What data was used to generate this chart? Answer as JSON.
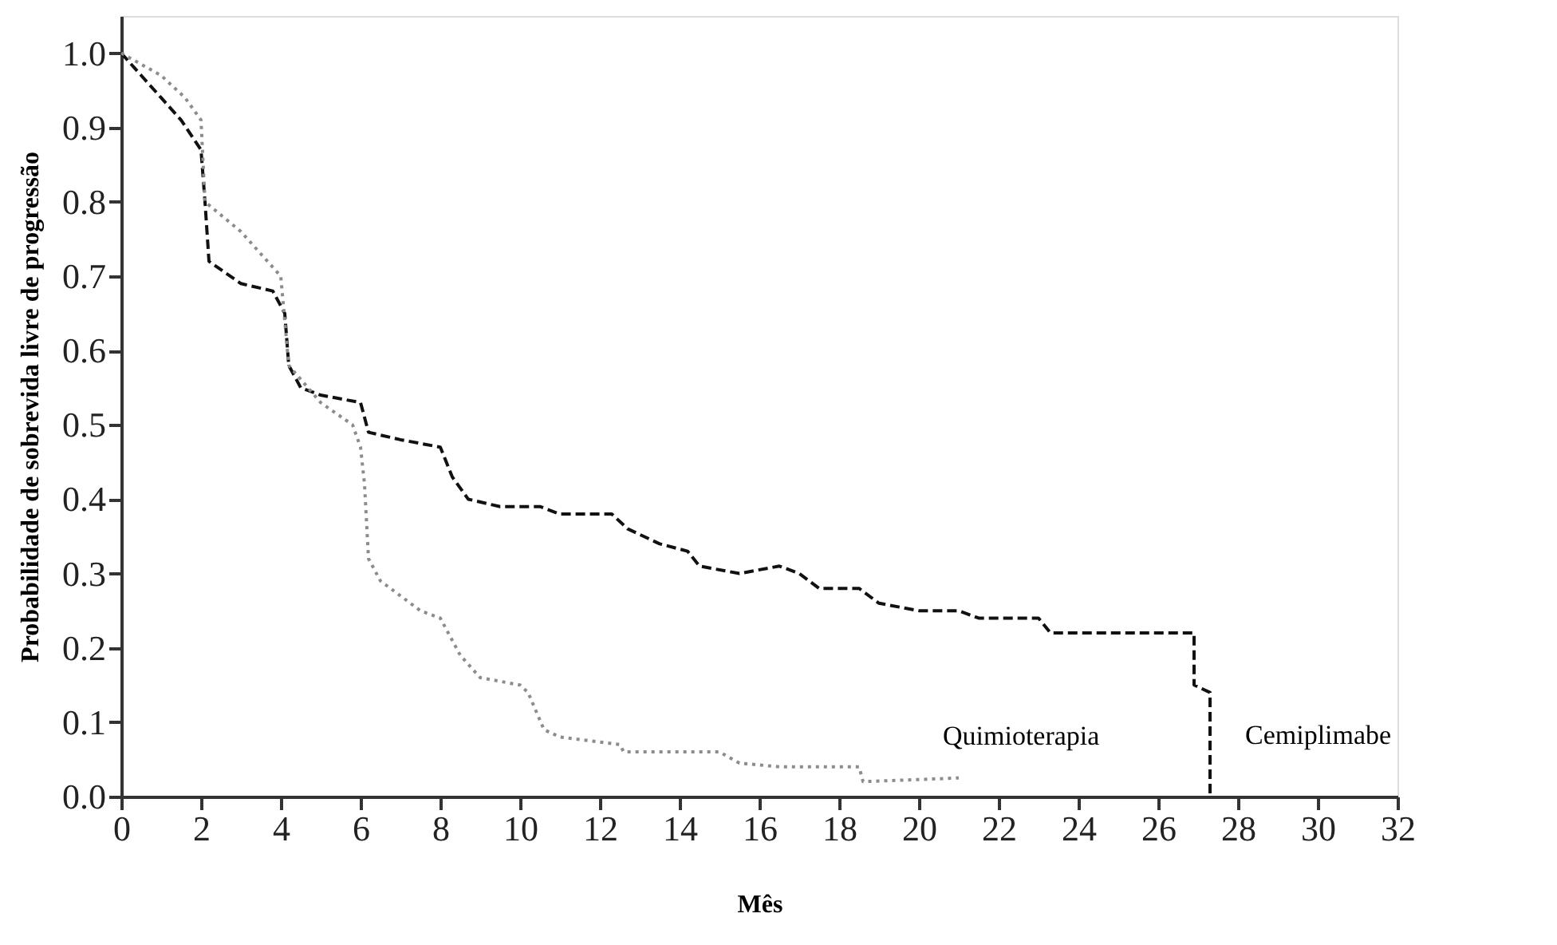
{
  "chart_data": {
    "type": "line",
    "xlabel": "Mês",
    "ylabel": "Probabilidade de sobrevida livre de progressão",
    "xlim": [
      0,
      32
    ],
    "xticks": [
      0,
      2,
      4,
      6,
      8,
      10,
      12,
      14,
      16,
      18,
      20,
      22,
      24,
      26,
      28,
      30,
      32
    ],
    "ylim": [
      0,
      1.05
    ],
    "yticks": [
      {
        "value": 0,
        "label": "0.0"
      },
      0.1,
      0.2,
      0.3,
      0.4,
      0.5,
      0.6,
      0.7,
      0.8,
      0.9,
      {
        "value": 1,
        "label": "1.0"
      }
    ],
    "grid": false,
    "marker": "none",
    "series": [
      {
        "name": "Cemiplimabe",
        "color": "#111111",
        "line_style": "dashed",
        "x": [
          0,
          0.5,
          1,
          1.5,
          2,
          2.1,
          2.2,
          3,
          3.8,
          4.1,
          4.2,
          4.5,
          5,
          6,
          6.2,
          7,
          8,
          8.3,
          8.7,
          9.5,
          10.5,
          11,
          12.3,
          12.7,
          13.5,
          14.2,
          14.5,
          15.5,
          16.5,
          17,
          17.5,
          18.5,
          19,
          20,
          21,
          21.5,
          23,
          23.3,
          26.9,
          26.9,
          27.3,
          27.3
        ],
        "values": [
          1.0,
          0.97,
          0.94,
          0.91,
          0.87,
          0.8,
          0.72,
          0.69,
          0.68,
          0.65,
          0.58,
          0.55,
          0.54,
          0.53,
          0.49,
          0.48,
          0.47,
          0.43,
          0.4,
          0.39,
          0.39,
          0.38,
          0.38,
          0.36,
          0.34,
          0.33,
          0.31,
          0.3,
          0.31,
          0.3,
          0.28,
          0.28,
          0.26,
          0.25,
          0.25,
          0.24,
          0.24,
          0.22,
          0.22,
          0.15,
          0.14,
          0.0
        ]
      },
      {
        "name": "Quimioterapia",
        "color": "#8c8c8c",
        "line_style": "dotted",
        "x": [
          0,
          1,
          1.6,
          2,
          2.1,
          3,
          3.5,
          4,
          4.2,
          5,
          5.8,
          6,
          6.1,
          6.2,
          6.5,
          7.5,
          8,
          8.5,
          9,
          10,
          10.2,
          10.6,
          11,
          12.5,
          12.6,
          15,
          15.5,
          16.5,
          18.5,
          18.6,
          21
        ],
        "values": [
          1.0,
          0.97,
          0.94,
          0.91,
          0.8,
          0.76,
          0.73,
          0.7,
          0.58,
          0.53,
          0.5,
          0.47,
          0.42,
          0.32,
          0.29,
          0.25,
          0.24,
          0.19,
          0.16,
          0.15,
          0.14,
          0.09,
          0.08,
          0.07,
          0.06,
          0.06,
          0.045,
          0.04,
          0.04,
          0.02,
          0.025
        ]
      }
    ]
  }
}
